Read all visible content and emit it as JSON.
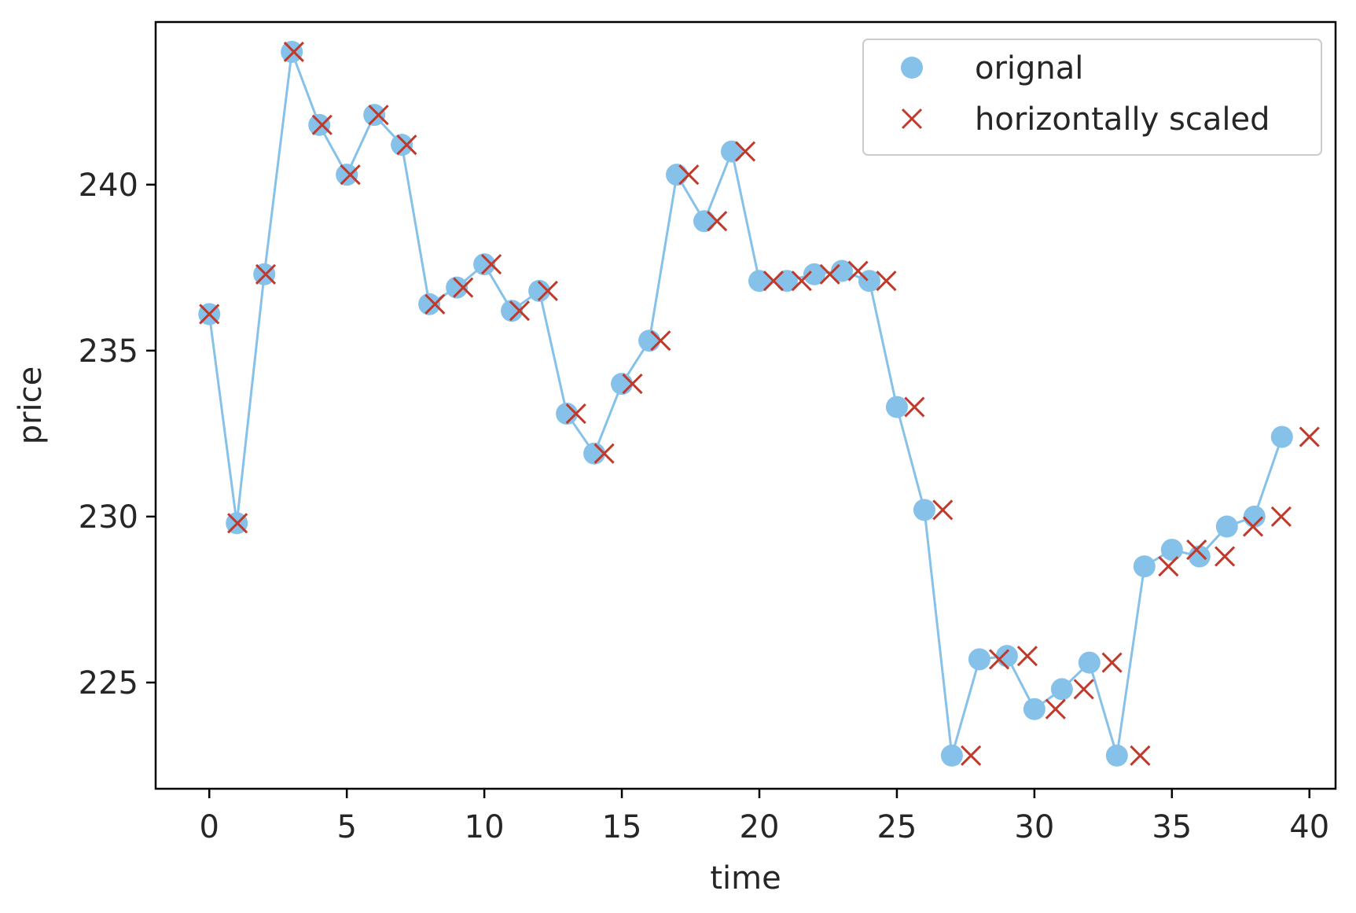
{
  "chart_data": {
    "type": "scatter",
    "title": "",
    "xlabel": "time",
    "ylabel": "price",
    "xlim": [
      -1.95,
      40.95
    ],
    "ylim": [
      221.8,
      244.9
    ],
    "xticks": [
      0,
      5,
      10,
      15,
      20,
      25,
      30,
      35,
      40
    ],
    "yticks": [
      225,
      230,
      235,
      240
    ],
    "grid": false,
    "legend_position": "top-right",
    "colors": {
      "original": "#85c1e9",
      "scaled": "#c0392b"
    },
    "series": [
      {
        "name": "orignal",
        "marker": "circle",
        "connected": true,
        "x": [
          0,
          1,
          2,
          3,
          4,
          5,
          6,
          7,
          8,
          9,
          10,
          11,
          12,
          13,
          14,
          15,
          16,
          17,
          18,
          19,
          20,
          21,
          22,
          23,
          24,
          25,
          26,
          27,
          28,
          29,
          30,
          31,
          32,
          33,
          34,
          35,
          36,
          37,
          38,
          39
        ],
        "y": [
          236.1,
          229.8,
          237.3,
          244.0,
          241.8,
          240.3,
          242.1,
          241.2,
          236.4,
          236.9,
          237.6,
          236.2,
          236.8,
          233.1,
          231.9,
          234.0,
          235.3,
          240.3,
          238.9,
          241.0,
          237.1,
          237.1,
          237.3,
          237.4,
          237.1,
          233.3,
          230.2,
          222.8,
          225.7,
          225.8,
          224.2,
          224.8,
          225.6,
          222.8,
          228.5,
          229.0,
          228.8,
          229.7,
          230.0,
          232.4
        ]
      },
      {
        "name": "horizontally scaled",
        "marker": "x",
        "connected": false,
        "x": [
          0.0,
          1.026,
          2.051,
          3.077,
          4.103,
          5.128,
          6.154,
          7.179,
          8.205,
          9.231,
          10.256,
          11.282,
          12.308,
          13.333,
          14.359,
          15.385,
          16.41,
          17.436,
          18.462,
          19.487,
          20.513,
          21.538,
          22.564,
          23.59,
          24.615,
          25.641,
          26.667,
          27.692,
          28.718,
          29.744,
          30.769,
          31.795,
          32.821,
          33.846,
          34.872,
          35.897,
          36.923,
          37.949,
          38.974,
          40.0
        ],
        "y": [
          236.1,
          229.8,
          237.3,
          244.0,
          241.8,
          240.3,
          242.1,
          241.2,
          236.4,
          236.9,
          237.6,
          236.2,
          236.8,
          233.1,
          231.9,
          234.0,
          235.3,
          240.3,
          238.9,
          241.0,
          237.1,
          237.1,
          237.3,
          237.4,
          237.1,
          233.3,
          230.2,
          222.8,
          225.7,
          225.8,
          224.2,
          224.8,
          225.6,
          222.8,
          228.5,
          229.0,
          228.8,
          229.7,
          230.0,
          232.4
        ]
      }
    ]
  }
}
